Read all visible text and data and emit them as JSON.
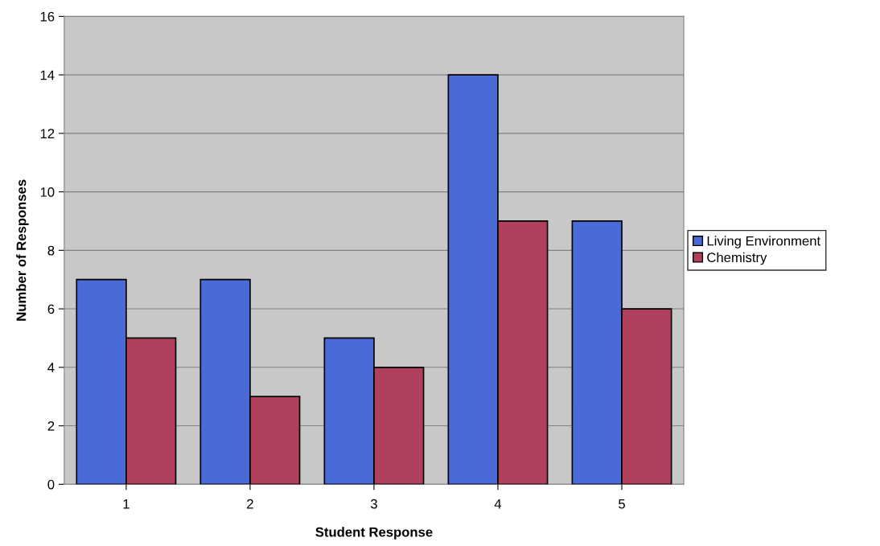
{
  "chart_data": {
    "type": "bar",
    "xlabel": "Student Response",
    "ylabel": "Number of Responses",
    "categories": [
      "1",
      "2",
      "3",
      "4",
      "5"
    ],
    "series": [
      {
        "name": "Living Environment",
        "color": "#4a6ad8",
        "values": [
          7,
          7,
          5,
          14,
          9
        ]
      },
      {
        "name": "Chemistry",
        "color": "#b0405c",
        "values": [
          5,
          3,
          4,
          9,
          6
        ]
      }
    ],
    "ylim": [
      0,
      16
    ],
    "yticks": [
      0,
      2,
      4,
      6,
      8,
      10,
      12,
      14,
      16
    ],
    "grid": "y",
    "legend": "right"
  }
}
